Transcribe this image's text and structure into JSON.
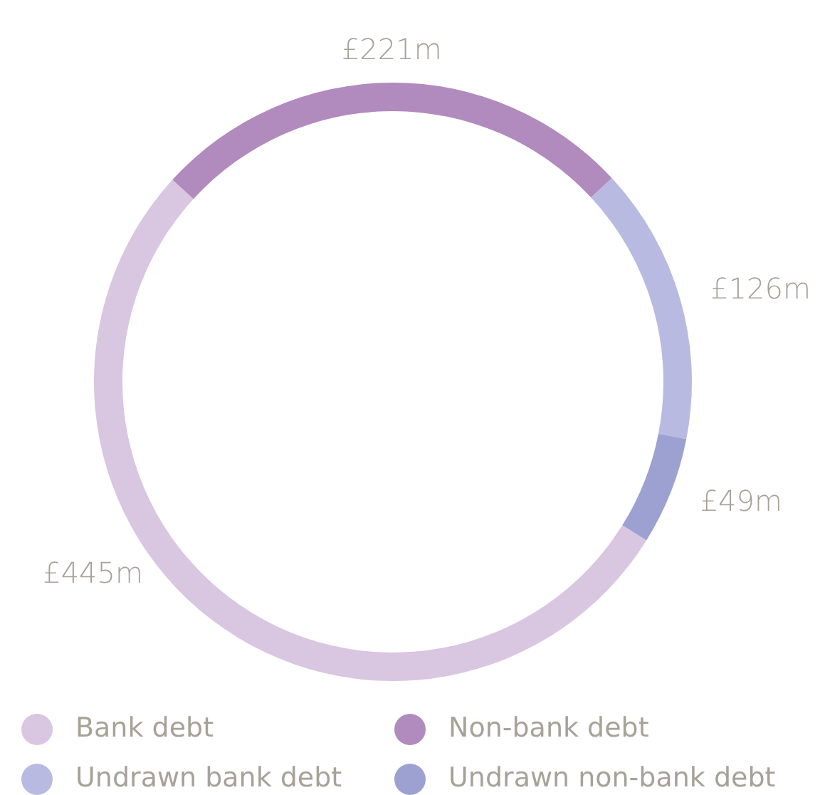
{
  "chart_data": {
    "type": "donut",
    "categories": [
      "Bank debt",
      "Non-bank debt",
      "Undrawn bank debt",
      "Undrawn non-bank debt"
    ],
    "values": [
      445,
      221,
      126,
      49
    ],
    "colors": [
      "#d9c6e1",
      "#b18abe",
      "#b9bae1",
      "#9da1d2"
    ],
    "value_labels": [
      "£445m",
      "£221m",
      "£126m",
      "£49m"
    ],
    "legend": "bottom"
  }
}
